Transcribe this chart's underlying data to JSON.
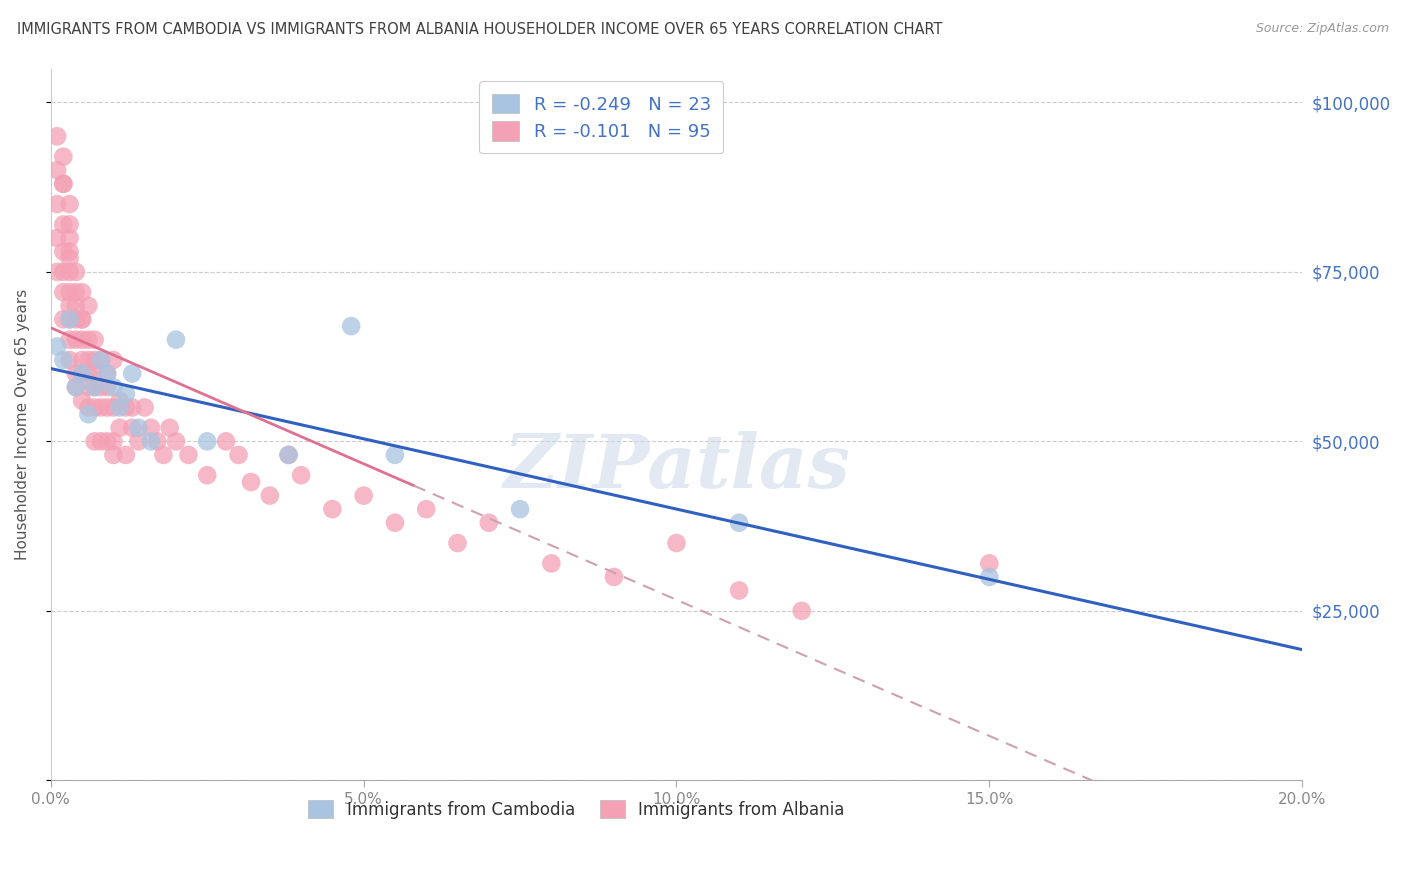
{
  "title": "IMMIGRANTS FROM CAMBODIA VS IMMIGRANTS FROM ALBANIA HOUSEHOLDER INCOME OVER 65 YEARS CORRELATION CHART",
  "source": "Source: ZipAtlas.com",
  "ylabel": "Householder Income Over 65 years",
  "xlim": [
    0.0,
    0.2
  ],
  "ylim": [
    0,
    105000
  ],
  "yticks": [
    0,
    25000,
    50000,
    75000,
    100000
  ],
  "ytick_labels": [
    "",
    "$25,000",
    "$50,000",
    "$75,000",
    "$100,000"
  ],
  "xticks": [
    0.0,
    0.05,
    0.1,
    0.15,
    0.2
  ],
  "xtick_labels": [
    "0.0%",
    "5.0%",
    "10.0%",
    "15.0%",
    "20.0%"
  ],
  "color_cambodia": "#a8c4e0",
  "color_albania": "#f4a0b5",
  "line_color_cambodia": "#3060c0",
  "line_color_albania": "#e07090",
  "line_color_albania_dash": "#d0a0b0",
  "background_color": "#ffffff",
  "grid_color": "#cccccc",
  "title_color": "#404040",
  "axis_label_color": "#555555",
  "tick_color": "#888888",
  "right_tick_color": "#4472c4",
  "legend_text_color": "#4472c4",
  "watermark": "ZIPatlas",
  "cambodia_x": [
    0.001,
    0.002,
    0.003,
    0.004,
    0.005,
    0.006,
    0.007,
    0.008,
    0.009,
    0.01,
    0.011,
    0.012,
    0.013,
    0.014,
    0.016,
    0.02,
    0.025,
    0.038,
    0.048,
    0.055,
    0.075,
    0.11,
    0.15
  ],
  "cambodia_y": [
    64000,
    62000,
    68000,
    58000,
    60000,
    54000,
    58000,
    62000,
    60000,
    58000,
    55000,
    57000,
    60000,
    52000,
    50000,
    65000,
    50000,
    48000,
    67000,
    48000,
    40000,
    38000,
    30000
  ],
  "albania_x": [
    0.001,
    0.001,
    0.001,
    0.001,
    0.001,
    0.002,
    0.002,
    0.002,
    0.002,
    0.002,
    0.002,
    0.002,
    0.002,
    0.003,
    0.003,
    0.003,
    0.003,
    0.003,
    0.003,
    0.003,
    0.003,
    0.003,
    0.003,
    0.003,
    0.004,
    0.004,
    0.004,
    0.004,
    0.004,
    0.004,
    0.004,
    0.005,
    0.005,
    0.005,
    0.005,
    0.005,
    0.005,
    0.005,
    0.006,
    0.006,
    0.006,
    0.006,
    0.006,
    0.006,
    0.007,
    0.007,
    0.007,
    0.007,
    0.007,
    0.007,
    0.008,
    0.008,
    0.008,
    0.008,
    0.009,
    0.009,
    0.009,
    0.009,
    0.01,
    0.01,
    0.01,
    0.01,
    0.011,
    0.011,
    0.012,
    0.012,
    0.013,
    0.013,
    0.014,
    0.015,
    0.016,
    0.017,
    0.018,
    0.019,
    0.02,
    0.022,
    0.025,
    0.028,
    0.03,
    0.032,
    0.035,
    0.038,
    0.04,
    0.045,
    0.05,
    0.055,
    0.06,
    0.065,
    0.07,
    0.08,
    0.09,
    0.1,
    0.11,
    0.12,
    0.15
  ],
  "albania_y": [
    95000,
    90000,
    85000,
    80000,
    75000,
    92000,
    88000,
    82000,
    78000,
    72000,
    88000,
    75000,
    68000,
    85000,
    80000,
    75000,
    70000,
    65000,
    78000,
    82000,
    72000,
    68000,
    62000,
    77000,
    72000,
    68000,
    65000,
    60000,
    75000,
    58000,
    70000,
    68000,
    65000,
    60000,
    72000,
    56000,
    62000,
    68000,
    65000,
    60000,
    55000,
    58000,
    70000,
    62000,
    62000,
    58000,
    65000,
    55000,
    60000,
    50000,
    62000,
    58000,
    55000,
    50000,
    60000,
    55000,
    50000,
    58000,
    55000,
    50000,
    62000,
    48000,
    56000,
    52000,
    55000,
    48000,
    52000,
    55000,
    50000,
    55000,
    52000,
    50000,
    48000,
    52000,
    50000,
    48000,
    45000,
    50000,
    48000,
    44000,
    42000,
    48000,
    45000,
    40000,
    42000,
    38000,
    40000,
    35000,
    38000,
    32000,
    30000,
    35000,
    28000,
    25000,
    32000
  ],
  "legend_r1": "R = -0.249",
  "legend_n1": "N = 23",
  "legend_r2": "R = -0.101",
  "legend_n2": "N = 95"
}
